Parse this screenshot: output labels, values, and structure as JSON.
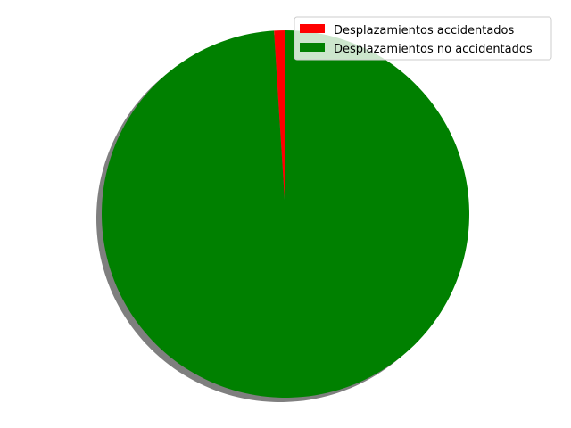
{
  "chart_data": {
    "type": "pie",
    "title": "",
    "shadow": true,
    "start_angle_deg": 90,
    "direction": "counterclockwise",
    "legend_position": "upper-right",
    "slices": [
      {
        "label": "Desplazamientos accidentados",
        "value": 1.0,
        "color": "#ff0000"
      },
      {
        "label": "Desplazamientos no accidentados",
        "value": 99.0,
        "color": "#008000"
      }
    ]
  }
}
